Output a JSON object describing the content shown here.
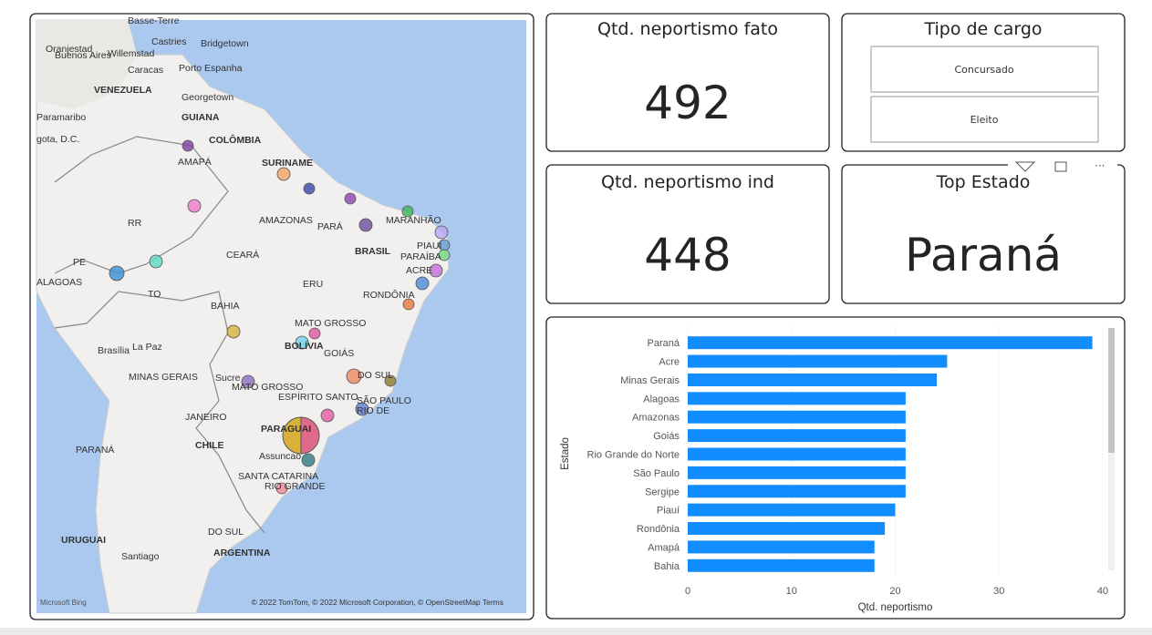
{
  "map": {
    "labels": [
      "Basse-Terre",
      "Oranjestad",
      "Willemstad",
      "Castries",
      "Bridgetown",
      "Caracas",
      "Porto Espanha",
      "VENEZUELA",
      "Georgetown",
      "GUIANA",
      "Paramaribo",
      "gota, D.C.",
      "COLÔMBIA",
      "SURINAME",
      "AMAPÁ",
      "RR",
      "AMAZONAS",
      "PARÁ",
      "MARANHÃO",
      "CEARÁ",
      "BRASIL",
      "PIAUÍ",
      "PARAÍBA",
      "PE",
      "ACRE",
      "ALAGOAS",
      "ERU",
      "TO",
      "RONDÔNIA",
      "BAHIA",
      "MATO GROSSO",
      "Brasília",
      "La Paz",
      "BOLÍVIA",
      "GOIÁS",
      "MINAS GERAIS",
      "Sucre",
      "MATO GROSSO",
      "DO SUL",
      "ESPÍRITO SANTO",
      "SÃO PAULO",
      "RIO DE",
      "JANEIRO",
      "PARAGUAI",
      "PARANÁ",
      "CHILE",
      "Assuncao",
      "SANTA CATARINA",
      "RIO GRANDE",
      "DO SUL",
      "URUGUAI",
      "Santiago",
      "ARGENTINA",
      "Buenos Aires"
    ],
    "attribution": "© 2022 TomTom, © 2022 Microsoft Corporation, © OpenStreetMap  Terms",
    "brand": "Microsoft Bing"
  },
  "cards": [
    {
      "title": "Qtd. neportismo fato",
      "value": 492
    },
    {
      "title": "Qtd. neportismo ind",
      "value": 448
    },
    {
      "title": "Top Estado",
      "value": "Paraná"
    }
  ],
  "slicer": {
    "title": "Tipo de cargo",
    "items": [
      "Concursado",
      "Eleito"
    ]
  },
  "chart_data": {
    "type": "hbar",
    "categories": [
      "Paraná",
      "Acre",
      "Minas Gerais",
      "Alagoas",
      "Amazonas",
      "Goiás",
      "Rio Grande do Norte",
      "São Paulo",
      "Sergipe",
      "Piauí",
      "Rondônia",
      "Amapá",
      "Bahia"
    ],
    "values": [
      39,
      25,
      24,
      21,
      21,
      21,
      21,
      21,
      21,
      20,
      19,
      18,
      18
    ],
    "color": "#118dff",
    "xlim": [
      0,
      40
    ],
    "xticks": [
      0,
      10,
      20,
      30,
      40
    ],
    "grid": true,
    "x_label": "Qtd. neportismo",
    "y_label": "Estado"
  }
}
